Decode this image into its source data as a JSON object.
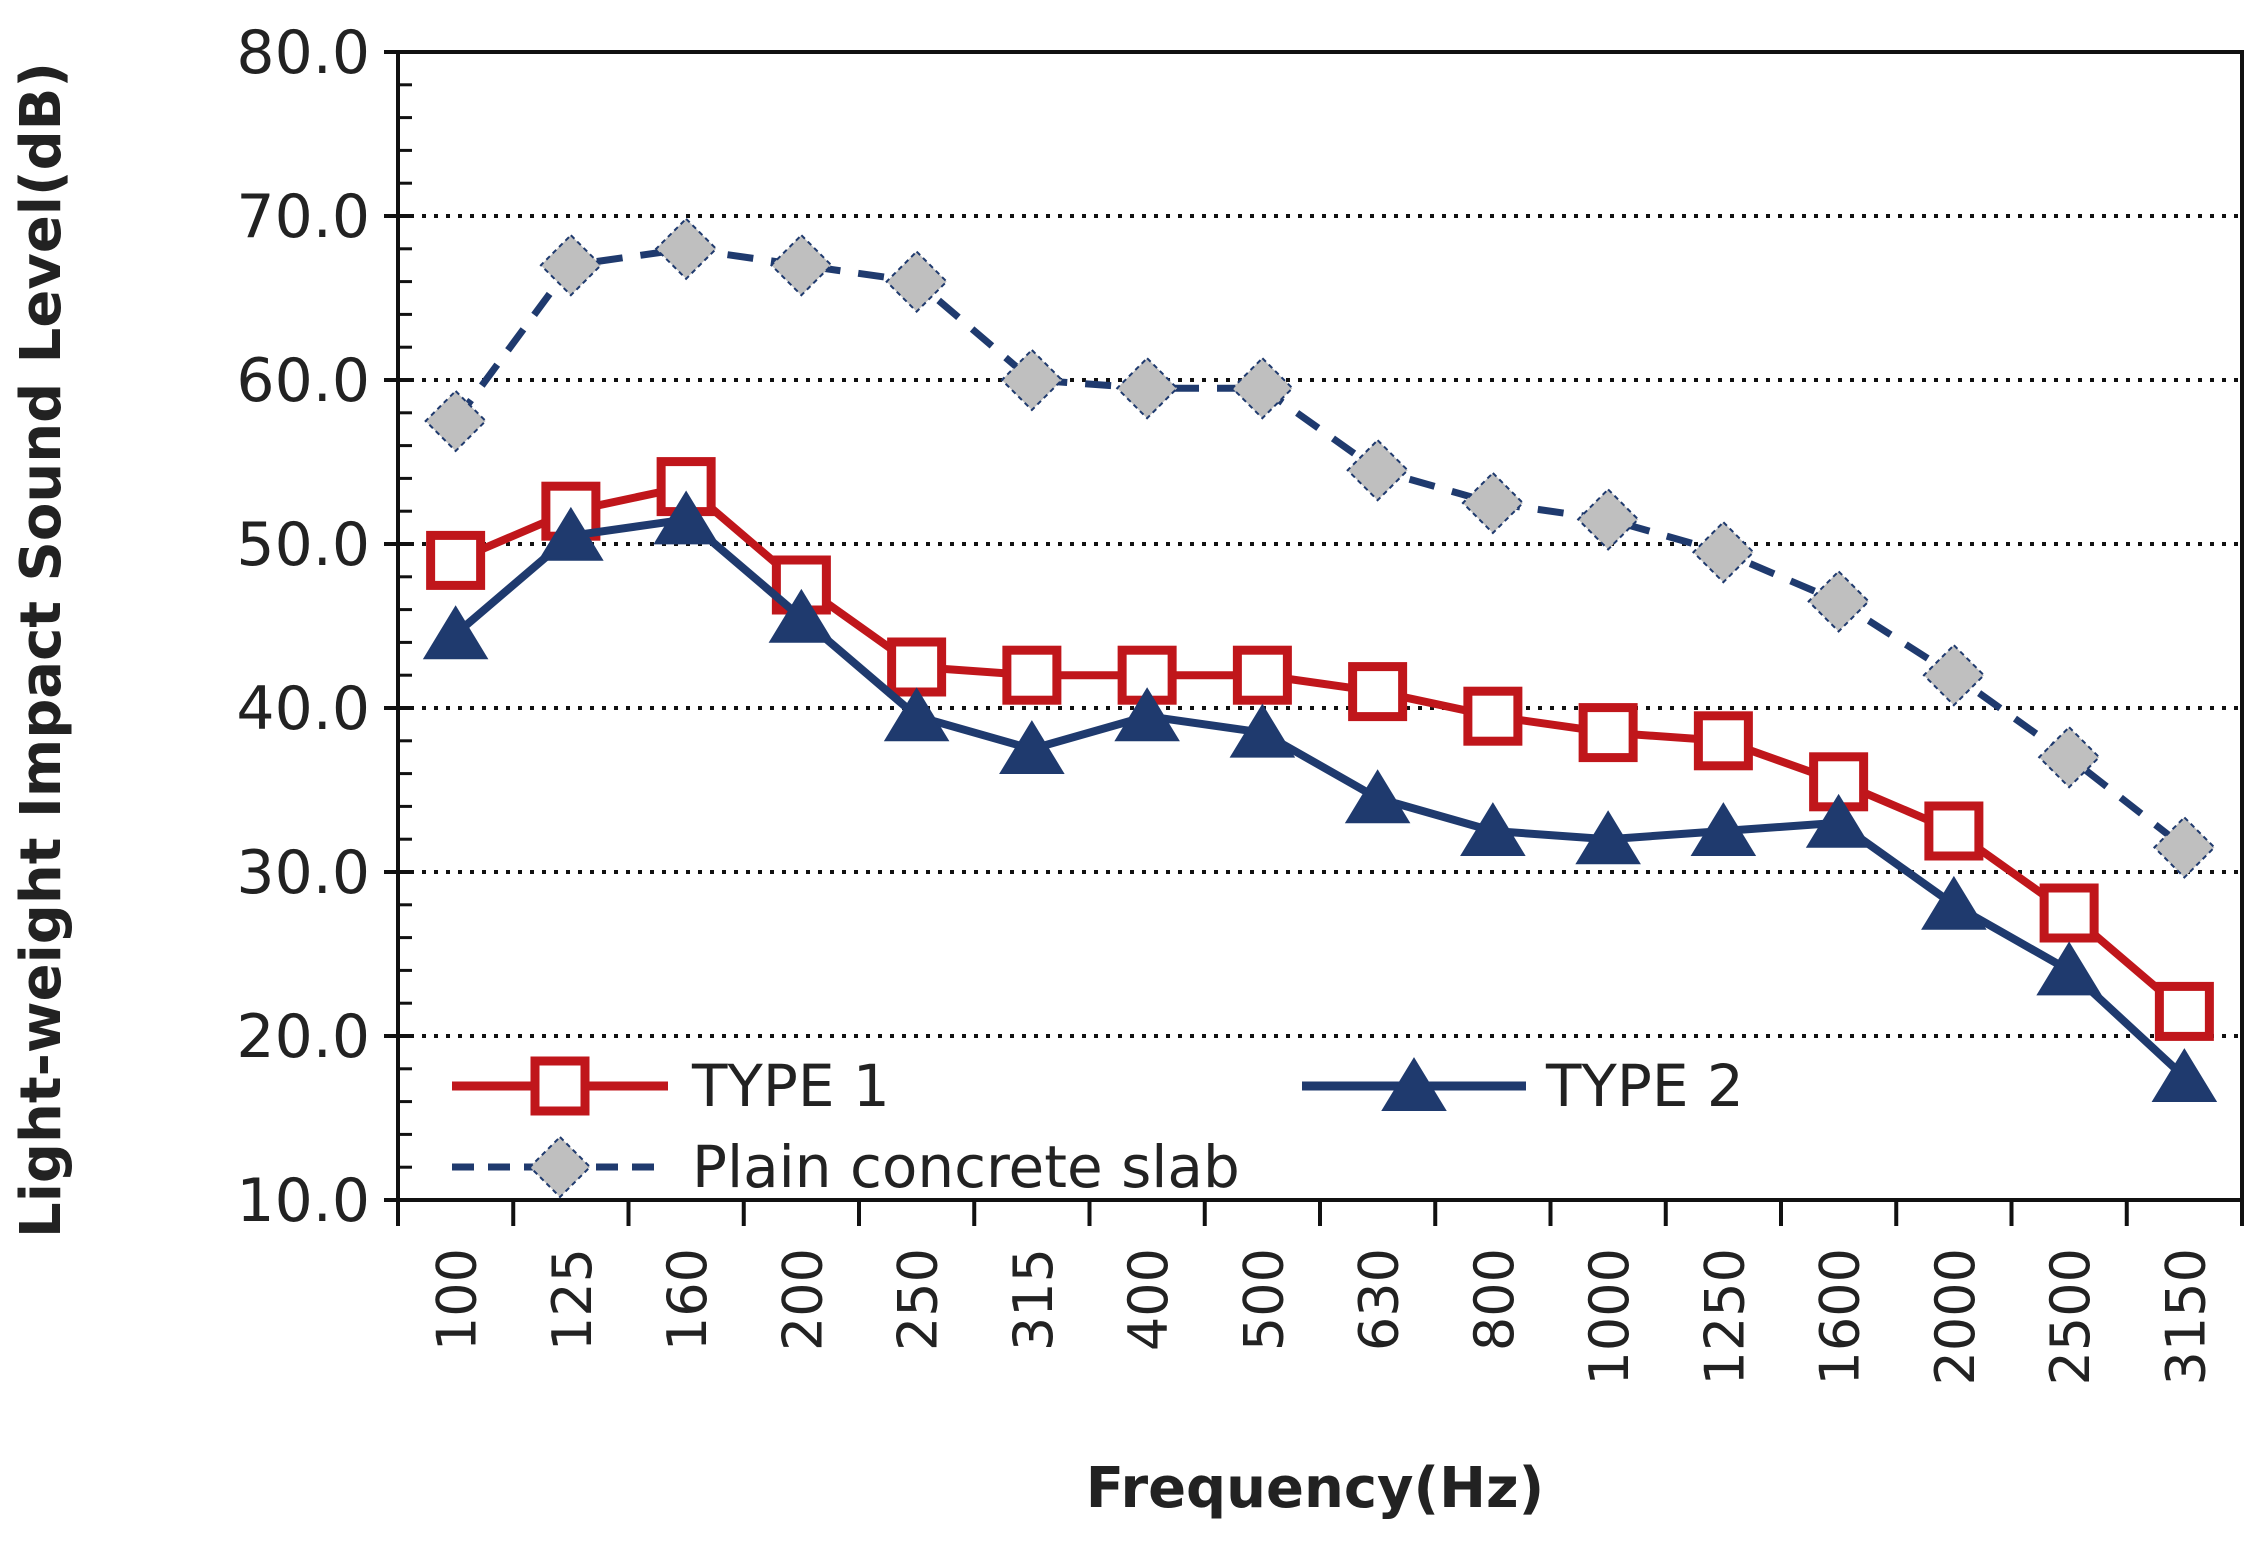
{
  "chart_data": {
    "type": "line",
    "xlabel": "Frequency(Hz)",
    "ylabel": "Light-weight Impact Sound Level(dB)",
    "ylim": [
      10,
      80
    ],
    "yticks": [
      "10.0",
      "20.0",
      "30.0",
      "40.0",
      "50.0",
      "60.0",
      "70.0",
      "80.0"
    ],
    "categories": [
      "100",
      "125",
      "160",
      "200",
      "250",
      "315",
      "400",
      "500",
      "630",
      "800",
      "1000",
      "1250",
      "1600",
      "2000",
      "2500",
      "3150"
    ],
    "grid": "horizontal dotted",
    "legend_position": "bottom-left",
    "series": [
      {
        "name": "TYPE 1",
        "color": "#c0161b",
        "marker": "open-square",
        "line_style": "solid",
        "values": [
          49.0,
          52.0,
          53.5,
          47.5,
          42.5,
          42.0,
          42.0,
          42.0,
          41.0,
          39.5,
          38.5,
          38.0,
          35.5,
          32.5,
          27.5,
          21.5
        ]
      },
      {
        "name": "TYPE 2",
        "color": "#1f3a6e",
        "marker": "filled-triangle",
        "line_style": "solid",
        "values": [
          44.5,
          50.5,
          51.5,
          45.5,
          39.5,
          37.5,
          39.5,
          38.5,
          34.5,
          32.5,
          32.0,
          32.5,
          33.0,
          28.0,
          24.0,
          17.5
        ]
      },
      {
        "name": "Plain concrete slab",
        "color": "#1f3a6e",
        "marker_fill": "#bfbfbf",
        "marker": "diamond",
        "line_style": "dashed",
        "values": [
          57.5,
          67.0,
          68.0,
          67.0,
          66.0,
          60.0,
          59.5,
          59.5,
          54.5,
          52.5,
          51.5,
          49.5,
          46.5,
          42.0,
          37.0,
          31.5
        ]
      }
    ]
  }
}
